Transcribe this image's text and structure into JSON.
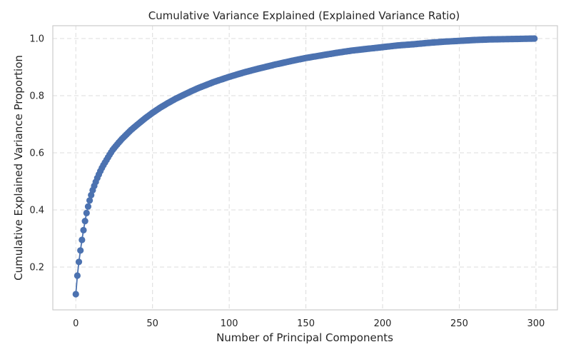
{
  "chart_data": {
    "type": "line",
    "title": "Cumulative Variance Explained (Explained Variance Ratio)",
    "xlabel": "Number of Principal Components",
    "ylabel": "Cumulative Explained Variance Proportion",
    "xlim": [
      -15,
      314
    ],
    "ylim": [
      0.05,
      1.045
    ],
    "xticks": [
      0,
      50,
      100,
      150,
      200,
      250,
      300
    ],
    "yticks": [
      0.2,
      0.4,
      0.6,
      0.8,
      1.0
    ],
    "ytick_labels": [
      "0.2",
      "0.4",
      "0.6",
      "0.8",
      "1.0"
    ],
    "grid": true,
    "marker": "circle",
    "color": "#4c72b0",
    "series": [
      {
        "x": [
          0,
          1,
          2,
          3,
          4,
          5,
          6,
          7,
          8,
          9,
          10,
          11,
          12,
          13,
          14,
          15,
          16,
          17,
          18,
          19,
          20,
          22,
          24,
          26,
          28,
          30,
          33,
          36,
          40,
          45,
          50,
          55,
          60,
          65,
          70,
          75,
          80,
          90,
          100,
          110,
          120,
          130,
          140,
          150,
          160,
          170,
          180,
          190,
          200,
          210,
          220,
          230,
          240,
          250,
          260,
          270,
          280,
          290,
          299
        ],
        "y": [
          0.105,
          0.17,
          0.218,
          0.258,
          0.295,
          0.329,
          0.361,
          0.389,
          0.412,
          0.433,
          0.452,
          0.469,
          0.484,
          0.498,
          0.512,
          0.524,
          0.536,
          0.547,
          0.557,
          0.566,
          0.575,
          0.593,
          0.61,
          0.623,
          0.636,
          0.648,
          0.664,
          0.68,
          0.698,
          0.72,
          0.74,
          0.758,
          0.774,
          0.789,
          0.802,
          0.815,
          0.827,
          0.848,
          0.866,
          0.882,
          0.896,
          0.909,
          0.921,
          0.932,
          0.941,
          0.95,
          0.958,
          0.964,
          0.97,
          0.976,
          0.98,
          0.985,
          0.989,
          0.992,
          0.995,
          0.997,
          0.998,
          0.999,
          1.0
        ]
      }
    ]
  }
}
